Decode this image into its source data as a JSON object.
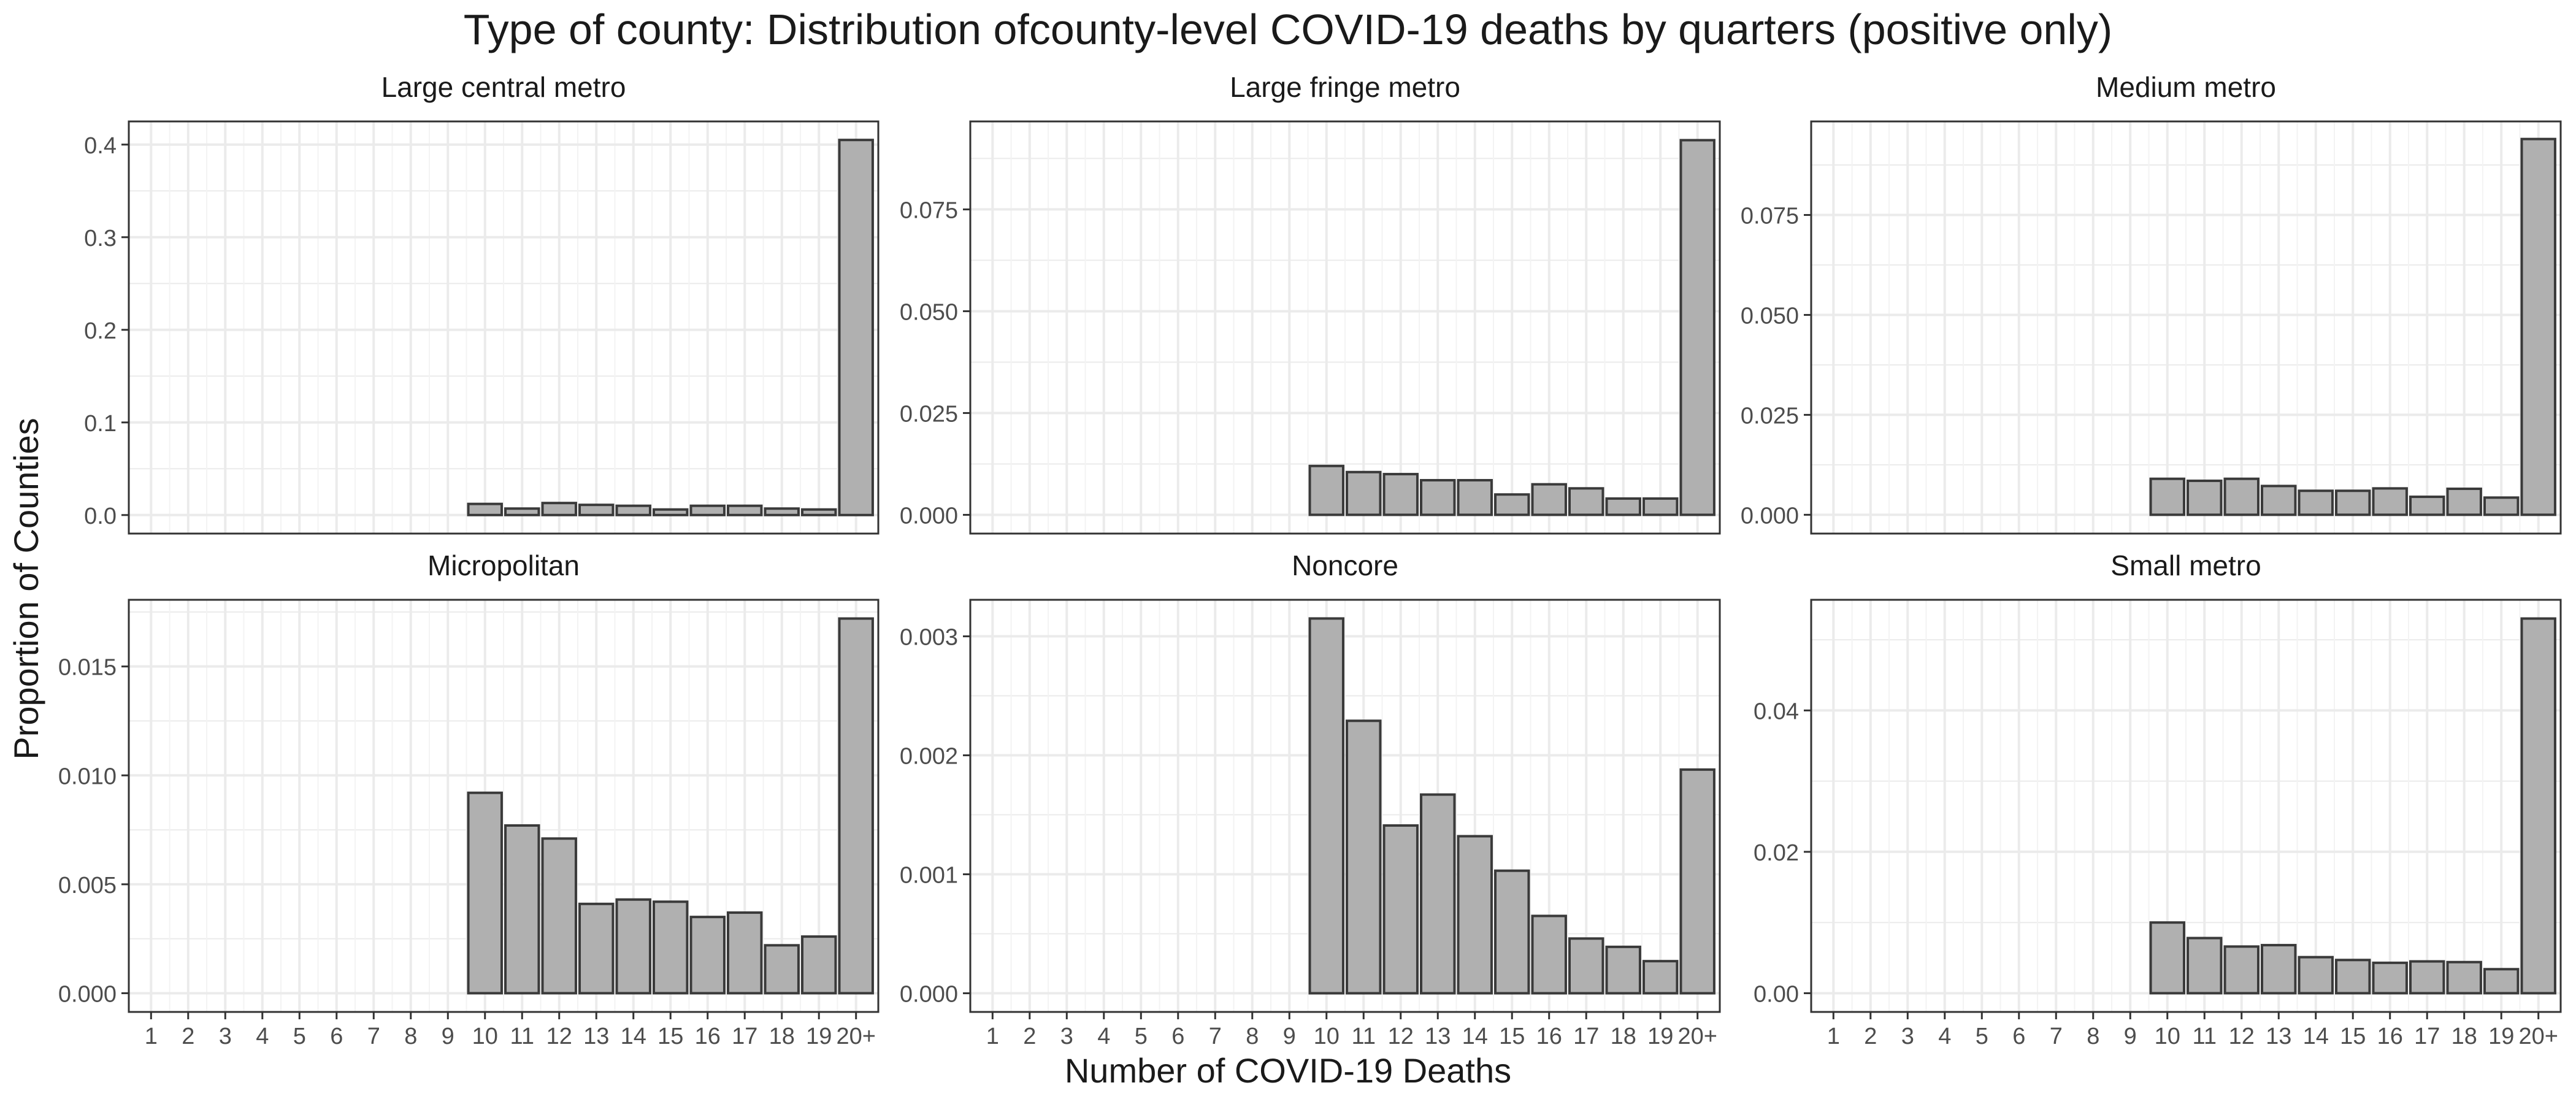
{
  "chart_data": {
    "title": "Type of county: Distribution ofcounty-level COVID-19 deaths by quarters (positive only)",
    "xlabel": "Number of COVID-19 Deaths",
    "ylabel": "Proportion of Counties",
    "x_categories": [
      "1",
      "2",
      "3",
      "4",
      "5",
      "6",
      "7",
      "8",
      "9",
      "10",
      "11",
      "12",
      "13",
      "14",
      "15",
      "16",
      "17",
      "18",
      "19",
      "20+"
    ],
    "colors": {
      "bar_fill": "#b0b0b0",
      "bar_stroke": "#3a3a3a",
      "panel_border": "#333333",
      "grid": "#ebebeb",
      "text": "#4d4d4d",
      "title": "#1a1a1a"
    },
    "panels": [
      {
        "type": "bar",
        "title": "Large central metro",
        "ylim": [
          -0.02,
          0.425
        ],
        "yticks": [
          "0.0",
          "0.1",
          "0.2",
          "0.3",
          "0.4"
        ],
        "ytick_values": [
          0,
          0.1,
          0.2,
          0.3,
          0.4
        ],
        "values": [
          0,
          0,
          0,
          0,
          0,
          0,
          0,
          0,
          0,
          0.012,
          0.007,
          0.013,
          0.011,
          0.01,
          0.006,
          0.01,
          0.01,
          0.007,
          0.006,
          0.405
        ]
      },
      {
        "type": "bar",
        "title": "Large fringe metro",
        "ylim": [
          -0.0046,
          0.0966
        ],
        "yticks": [
          "0.000",
          "0.025",
          "0.050",
          "0.075"
        ],
        "ytick_values": [
          0,
          0.025,
          0.05,
          0.075
        ],
        "values": [
          0,
          0,
          0,
          0,
          0,
          0,
          0,
          0,
          0,
          0.012,
          0.0105,
          0.01,
          0.0085,
          0.0085,
          0.005,
          0.0075,
          0.0065,
          0.004,
          0.004,
          0.092
        ]
      },
      {
        "type": "bar",
        "title": "Medium metro",
        "ylim": [
          -0.0047,
          0.0984
        ],
        "yticks": [
          "0.000",
          "0.025",
          "0.050",
          "0.075"
        ],
        "ytick_values": [
          0,
          0.025,
          0.05,
          0.075
        ],
        "values": [
          0,
          0,
          0,
          0,
          0,
          0,
          0,
          0,
          0,
          0.009,
          0.0085,
          0.009,
          0.0072,
          0.006,
          0.006,
          0.0066,
          0.0045,
          0.0065,
          0.0043,
          0.094
        ]
      },
      {
        "type": "bar",
        "title": "Micropolitan",
        "ylim": [
          -0.00086,
          0.01806
        ],
        "yticks": [
          "0.000",
          "0.005",
          "0.010",
          "0.015"
        ],
        "ytick_values": [
          0,
          0.005,
          0.01,
          0.015
        ],
        "values": [
          0,
          0,
          0,
          0,
          0,
          0,
          0,
          0,
          0,
          0.0092,
          0.0077,
          0.0071,
          0.0041,
          0.0043,
          0.0042,
          0.0035,
          0.0037,
          0.0022,
          0.0026,
          0.0172
        ]
      },
      {
        "type": "bar",
        "title": "Noncore",
        "ylim": [
          -0.000157,
          0.003307
        ],
        "yticks": [
          "0.000",
          "0.001",
          "0.002",
          "0.003"
        ],
        "ytick_values": [
          0,
          0.001,
          0.002,
          0.003
        ],
        "values": [
          0,
          0,
          0,
          0,
          0,
          0,
          0,
          0,
          0,
          0.00315,
          0.00229,
          0.00141,
          0.00167,
          0.00132,
          0.00103,
          0.00065,
          0.00046,
          0.00039,
          0.00027,
          0.00188
        ]
      },
      {
        "type": "bar",
        "title": "Small metro",
        "ylim": [
          -0.00265,
          0.05565
        ],
        "yticks": [
          "0.00",
          "0.02",
          "0.04"
        ],
        "ytick_values": [
          0,
          0.02,
          0.04
        ],
        "values": [
          0,
          0,
          0,
          0,
          0,
          0,
          0,
          0,
          0,
          0.01,
          0.0078,
          0.0066,
          0.0068,
          0.0051,
          0.0047,
          0.0043,
          0.0045,
          0.0044,
          0.0034,
          0.053
        ]
      }
    ]
  }
}
